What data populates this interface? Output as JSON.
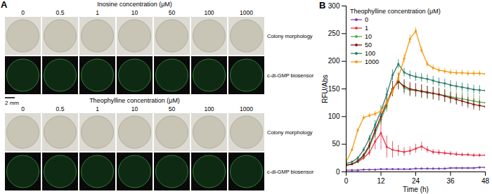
{
  "panel_a": {
    "label": "A",
    "scale_bar": "2 mm",
    "row_labels": [
      "Colony morphology",
      "c-di-GMP biosensor"
    ],
    "groups": [
      {
        "title": "Inosine concentration (μM)",
        "concentrations": [
          0,
          0.5,
          1,
          10,
          50,
          100,
          1000
        ]
      },
      {
        "title": "Theophylline concentration (μM)",
        "concentrations": [
          0,
          0.5,
          1,
          10,
          50,
          100,
          1000
        ]
      }
    ]
  },
  "chart_data": {
    "panel": "B",
    "type": "line",
    "x_label": "Time (h)",
    "y_label": "RFU/Abs",
    "legend_title": "Theophylline concentration (μM)",
    "legend": "top-left",
    "marker": "circle",
    "x": [
      0,
      2,
      4,
      6,
      8,
      10,
      12,
      14,
      16,
      18,
      20,
      22,
      24,
      26,
      28,
      30,
      32,
      34,
      36,
      38,
      40,
      42,
      44,
      46,
      48
    ],
    "xlim": [
      0,
      48
    ],
    "xticks": [
      0,
      12,
      24,
      36,
      48
    ],
    "ylim": [
      0,
      300
    ],
    "yticks": [
      0,
      50,
      100,
      150,
      200,
      250,
      300
    ],
    "series": [
      {
        "name": "0",
        "color": "#7b3fb0",
        "values": [
          3,
          3,
          3,
          4,
          4,
          4,
          5,
          5,
          5,
          5,
          5,
          5,
          6,
          6,
          6,
          6,
          6,
          6,
          7,
          7,
          7,
          7,
          7,
          8,
          8
        ],
        "errors": [
          1,
          1,
          1,
          1,
          1,
          1,
          1,
          1,
          1,
          1,
          1,
          1,
          1,
          1,
          1,
          1,
          1,
          1,
          1,
          1,
          1,
          1,
          1,
          1,
          1
        ]
      },
      {
        "name": "1",
        "color": "#e8384f",
        "values": [
          12,
          14,
          18,
          25,
          35,
          55,
          70,
          45,
          40,
          38,
          36,
          38,
          42,
          46,
          40,
          36,
          35,
          34,
          33,
          32,
          31,
          31,
          30,
          30,
          30
        ],
        "errors": [
          2,
          2,
          3,
          4,
          6,
          15,
          30,
          20,
          15,
          10,
          8,
          8,
          8,
          8,
          6,
          5,
          5,
          4,
          4,
          4,
          3,
          3,
          3,
          3,
          3
        ]
      },
      {
        "name": "10",
        "color": "#4caf50",
        "values": [
          12,
          14,
          18,
          28,
          45,
          70,
          95,
          120,
          150,
          165,
          152,
          148,
          147,
          145,
          143,
          142,
          140,
          138,
          136,
          134,
          132,
          130,
          128,
          126,
          125
        ],
        "errors": [
          2,
          2,
          3,
          4,
          6,
          8,
          10,
          12,
          14,
          15,
          12,
          12,
          12,
          12,
          12,
          12,
          12,
          12,
          12,
          12,
          12,
          12,
          12,
          12,
          12
        ]
      },
      {
        "name": "50",
        "color": "#8b1a1a",
        "values": [
          12,
          14,
          20,
          30,
          48,
          75,
          100,
          125,
          150,
          163,
          155,
          150,
          148,
          146,
          144,
          142,
          140,
          137,
          134,
          131,
          128,
          125,
          122,
          120,
          118
        ],
        "errors": [
          2,
          2,
          3,
          4,
          6,
          8,
          10,
          12,
          14,
          15,
          12,
          12,
          12,
          12,
          11,
          11,
          11,
          11,
          10,
          10,
          10,
          10,
          10,
          10,
          10
        ]
      },
      {
        "name": "100",
        "color": "#2e7d6b",
        "values": [
          15,
          18,
          25,
          40,
          60,
          85,
          110,
          140,
          175,
          195,
          180,
          175,
          172,
          170,
          168,
          165,
          162,
          160,
          157,
          155,
          153,
          151,
          149,
          148,
          147
        ],
        "errors": [
          2,
          2,
          3,
          4,
          6,
          8,
          10,
          12,
          10,
          8,
          8,
          8,
          8,
          8,
          8,
          8,
          8,
          8,
          8,
          8,
          8,
          8,
          8,
          8,
          8
        ]
      },
      {
        "name": "1000",
        "color": "#f39c12",
        "values": [
          18,
          40,
          75,
          98,
          102,
          105,
          110,
          125,
          145,
          170,
          205,
          240,
          255,
          220,
          195,
          188,
          184,
          182,
          180,
          179,
          179,
          178,
          178,
          178,
          177
        ],
        "errors": [
          2,
          3,
          4,
          4,
          4,
          5,
          5,
          6,
          6,
          7,
          8,
          8,
          6,
          6,
          5,
          5,
          5,
          5,
          5,
          5,
          5,
          5,
          5,
          5,
          5
        ]
      }
    ]
  }
}
